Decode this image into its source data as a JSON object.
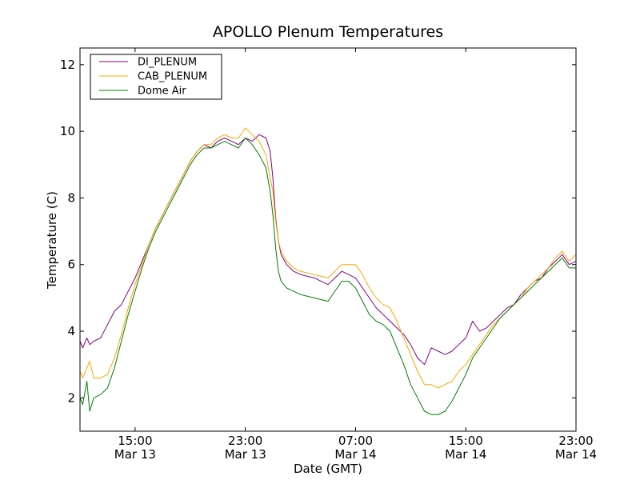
{
  "chart_data": {
    "type": "line",
    "title": "APOLLO Plenum Temperatures",
    "xlabel": "Date (GMT)",
    "ylabel": "Temperature (C)",
    "x_unit": "hours since Mar 13 00:00 GMT",
    "xlim": [
      11.0,
      47.0
    ],
    "ylim": [
      1.0,
      12.5
    ],
    "grid": false,
    "legend_position": "top-left",
    "x_ticks": [
      {
        "value": 15,
        "line1": "15:00",
        "line2": "Mar 13"
      },
      {
        "value": 23,
        "line1": "23:00",
        "line2": "Mar 13"
      },
      {
        "value": 31,
        "line1": "07:00",
        "line2": "Mar 14"
      },
      {
        "value": 39,
        "line1": "15:00",
        "line2": "Mar 14"
      },
      {
        "value": 47,
        "line1": "23:00",
        "line2": "Mar 14"
      }
    ],
    "y_ticks": [
      {
        "value": 2,
        "label": "2"
      },
      {
        "value": 4,
        "label": "4"
      },
      {
        "value": 6,
        "label": "6"
      },
      {
        "value": 8,
        "label": "8"
      },
      {
        "value": 10,
        "label": "10"
      },
      {
        "value": 12,
        "label": "12"
      }
    ],
    "series": [
      {
        "name": "DI_PLENUM",
        "color": "#800080",
        "x": [
          11.0,
          11.2,
          11.5,
          11.7,
          12.0,
          12.5,
          13.0,
          13.5,
          14.0,
          14.5,
          15.0,
          15.5,
          16.0,
          16.5,
          17.0,
          17.5,
          18.0,
          18.5,
          19.0,
          19.5,
          20.0,
          20.5,
          21.0,
          21.5,
          22.0,
          22.5,
          23.0,
          23.5,
          24.0,
          24.5,
          24.8,
          25.0,
          25.2,
          25.4,
          25.6,
          26.0,
          26.5,
          27.0,
          28.0,
          29.0,
          30.0,
          30.5,
          31.0,
          31.5,
          32.0,
          32.5,
          33.0,
          33.5,
          34.0,
          34.5,
          35.0,
          35.5,
          36.0,
          36.5,
          37.0,
          37.5,
          38.0,
          38.5,
          39.0,
          39.5,
          40.0,
          40.5,
          41.0,
          41.5,
          42.0,
          42.5,
          43.0,
          43.5,
          44.0,
          44.5,
          45.0,
          45.5,
          46.0,
          46.5,
          47.0
        ],
        "y": [
          3.7,
          3.5,
          3.8,
          3.6,
          3.7,
          3.8,
          4.2,
          4.6,
          4.8,
          5.2,
          5.6,
          6.1,
          6.6,
          7.1,
          7.5,
          7.9,
          8.3,
          8.7,
          9.1,
          9.4,
          9.6,
          9.5,
          9.7,
          9.8,
          9.7,
          9.6,
          9.8,
          9.7,
          9.9,
          9.8,
          9.4,
          8.6,
          7.4,
          6.7,
          6.3,
          6.0,
          5.8,
          5.7,
          5.6,
          5.4,
          5.8,
          5.7,
          5.6,
          5.3,
          5.0,
          4.7,
          4.5,
          4.3,
          4.1,
          3.9,
          3.6,
          3.2,
          3.0,
          3.5,
          3.4,
          3.3,
          3.4,
          3.6,
          3.8,
          4.3,
          4.0,
          4.1,
          4.3,
          4.5,
          4.7,
          4.8,
          5.1,
          5.3,
          5.5,
          5.6,
          5.9,
          6.1,
          6.3,
          6.0,
          6.1
        ]
      },
      {
        "name": "CAB_PLENUM",
        "color": "#ffa500",
        "x": [
          11.0,
          11.2,
          11.5,
          11.7,
          12.0,
          12.5,
          13.0,
          13.5,
          14.0,
          14.5,
          15.0,
          15.5,
          16.0,
          16.5,
          17.0,
          17.5,
          18.0,
          18.5,
          19.0,
          19.5,
          20.0,
          20.5,
          21.0,
          21.5,
          22.0,
          22.5,
          23.0,
          23.5,
          24.0,
          24.5,
          24.8,
          25.0,
          25.2,
          25.4,
          25.6,
          26.0,
          26.5,
          27.0,
          28.0,
          29.0,
          30.0,
          30.5,
          31.0,
          31.5,
          32.0,
          32.5,
          33.0,
          33.5,
          34.0,
          34.5,
          35.0,
          35.5,
          36.0,
          36.5,
          37.0,
          37.5,
          38.0,
          38.5,
          39.0,
          39.5,
          40.0,
          40.5,
          41.0,
          41.5,
          42.0,
          42.5,
          43.0,
          43.5,
          44.0,
          44.5,
          45.0,
          45.5,
          46.0,
          46.5,
          47.0
        ],
        "y": [
          2.8,
          2.6,
          2.9,
          3.1,
          2.6,
          2.6,
          2.7,
          3.2,
          3.9,
          4.7,
          5.4,
          6.0,
          6.6,
          7.1,
          7.5,
          7.9,
          8.3,
          8.7,
          9.1,
          9.4,
          9.6,
          9.6,
          9.8,
          9.9,
          9.8,
          9.8,
          10.1,
          9.9,
          9.7,
          9.3,
          8.6,
          8.2,
          7.3,
          6.7,
          6.4,
          6.1,
          5.9,
          5.8,
          5.7,
          5.6,
          6.0,
          6.0,
          6.0,
          5.7,
          5.3,
          5.0,
          4.8,
          4.7,
          4.3,
          3.8,
          3.3,
          2.8,
          2.4,
          2.4,
          2.3,
          2.4,
          2.5,
          2.8,
          3.0,
          3.3,
          3.6,
          3.9,
          4.2,
          4.4,
          4.6,
          4.8,
          5.0,
          5.3,
          5.5,
          5.7,
          5.9,
          6.2,
          6.4,
          6.1,
          6.3
        ]
      },
      {
        "name": "Dome Air",
        "color": "#008000",
        "x": [
          11.0,
          11.2,
          11.5,
          11.7,
          12.0,
          12.5,
          13.0,
          13.5,
          14.0,
          14.5,
          15.0,
          15.5,
          16.0,
          16.5,
          17.0,
          17.5,
          18.0,
          18.5,
          19.0,
          19.5,
          20.0,
          20.5,
          21.0,
          21.5,
          22.0,
          22.5,
          23.0,
          23.5,
          24.0,
          24.5,
          24.8,
          25.0,
          25.2,
          25.4,
          25.6,
          26.0,
          26.5,
          27.0,
          28.0,
          29.0,
          30.0,
          30.5,
          31.0,
          31.5,
          32.0,
          32.5,
          33.0,
          33.5,
          34.0,
          34.5,
          35.0,
          35.5,
          36.0,
          36.5,
          37.0,
          37.5,
          38.0,
          38.5,
          39.0,
          39.5,
          40.0,
          40.5,
          41.0,
          41.5,
          42.0,
          42.5,
          43.0,
          43.5,
          44.0,
          44.5,
          45.0,
          45.5,
          46.0,
          46.5,
          47.0
        ],
        "y": [
          2.0,
          1.8,
          2.5,
          1.6,
          2.0,
          2.1,
          2.3,
          2.9,
          3.7,
          4.5,
          5.2,
          5.9,
          6.5,
          7.0,
          7.4,
          7.8,
          8.2,
          8.6,
          9.0,
          9.3,
          9.5,
          9.5,
          9.6,
          9.7,
          9.6,
          9.5,
          9.8,
          9.6,
          9.3,
          8.9,
          8.2,
          7.5,
          6.5,
          5.8,
          5.5,
          5.3,
          5.2,
          5.1,
          5.0,
          4.9,
          5.5,
          5.5,
          5.3,
          4.9,
          4.5,
          4.3,
          4.2,
          4.0,
          3.5,
          3.0,
          2.4,
          2.0,
          1.6,
          1.5,
          1.5,
          1.6,
          1.9,
          2.3,
          2.7,
          3.2,
          3.5,
          3.8,
          4.1,
          4.4,
          4.6,
          4.8,
          5.0,
          5.2,
          5.4,
          5.6,
          5.8,
          6.0,
          6.2,
          5.9,
          5.9
        ]
      }
    ]
  }
}
